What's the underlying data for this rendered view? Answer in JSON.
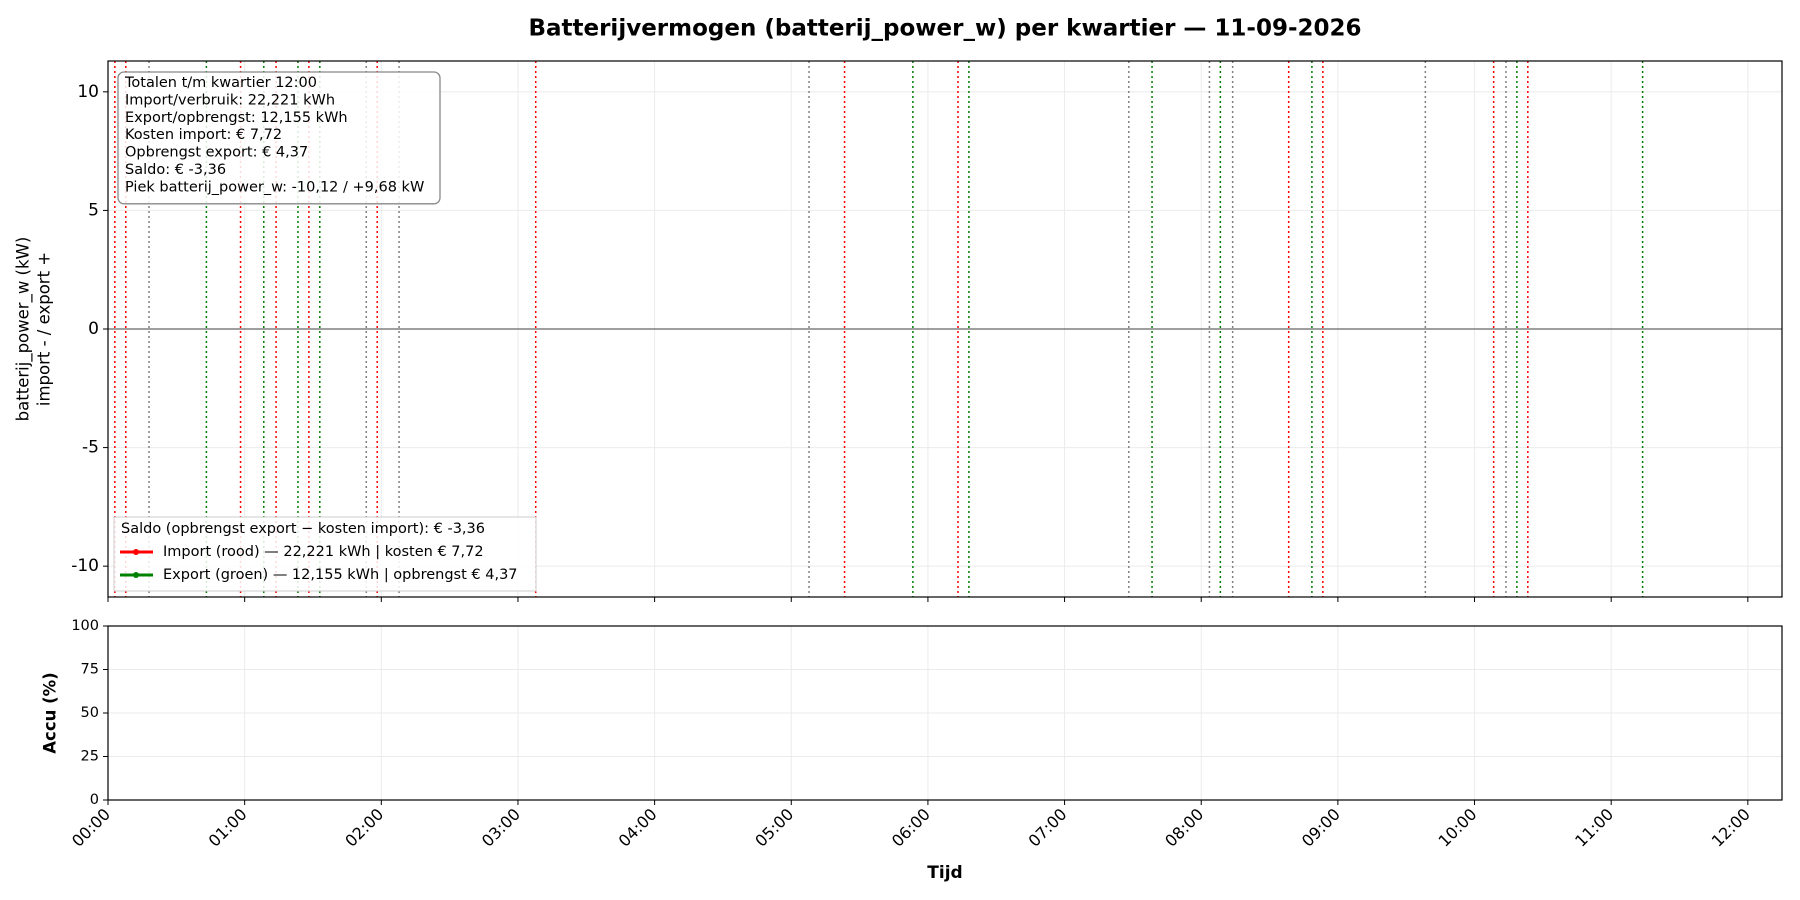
{
  "chart_data": [
    {
      "type": "events",
      "title": "Batterijvermogen (batterij_power_w) per kwartier — 11-09-2026",
      "ylabel": [
        "batterij_power_w (kW)",
        "import - / export +"
      ],
      "xlim": [
        0,
        12.25
      ],
      "ylim": [
        -11.3,
        11.3
      ],
      "yticks": [
        -10,
        -5,
        0,
        5,
        10
      ],
      "hline": 0,
      "grid": true,
      "annotation": [
        "Totalen t/m kwartier 12:00",
        "Import/verbruik: 22,221 kWh",
        "Export/opbrengst: 12,155 kWh",
        "Kosten import: € 7,72",
        "Opbrengst export: € 4,37",
        "Saldo: € -3,36",
        "Piek batterij_power_w: -10,12 / +9,68 kW"
      ],
      "legend_title": "Saldo (opbrengst export − kosten import): € -3,36",
      "legend": "lower left",
      "series": [
        {
          "name": "Import (rood) — 22,221 kWh | kosten € 7,72",
          "color": "#ff0000",
          "x": [
            0.05,
            0.13,
            0.97,
            1.23,
            1.47,
            1.97,
            3.13,
            5.39,
            6.22,
            8.64,
            8.89,
            10.14,
            10.39
          ]
        },
        {
          "name": "Export (groen) — 12,155 kWh | opbrengst € 4,37",
          "color": "#008000",
          "x": [
            0.72,
            1.14,
            1.39,
            1.55,
            5.89,
            6.3,
            7.64,
            8.14,
            8.81,
            10.31,
            11.23
          ]
        }
      ],
      "other_events": {
        "color": "#808080",
        "x": [
          0.3,
          1.89,
          2.13,
          5.13,
          7.47,
          8.06,
          8.23,
          9.64,
          10.23
        ]
      }
    },
    {
      "type": "line",
      "ylabel": "Accu (%)",
      "xlabel": "Tijd",
      "xlim": [
        0,
        12.25
      ],
      "ylim": [
        0,
        100
      ],
      "yticks": [
        0,
        25,
        50,
        75,
        100
      ],
      "grid": true,
      "xticks": [
        {
          "value": 0,
          "label": "00:00"
        },
        {
          "value": 1,
          "label": "01:00"
        },
        {
          "value": 2,
          "label": "02:00"
        },
        {
          "value": 3,
          "label": "03:00"
        },
        {
          "value": 4,
          "label": "04:00"
        },
        {
          "value": 5,
          "label": "05:00"
        },
        {
          "value": 6,
          "label": "06:00"
        },
        {
          "value": 7,
          "label": "07:00"
        },
        {
          "value": 8,
          "label": "08:00"
        },
        {
          "value": 9,
          "label": "09:00"
        },
        {
          "value": 10,
          "label": "10:00"
        },
        {
          "value": 11,
          "label": "11:00"
        },
        {
          "value": 12,
          "label": "12:00"
        }
      ],
      "series": []
    }
  ]
}
